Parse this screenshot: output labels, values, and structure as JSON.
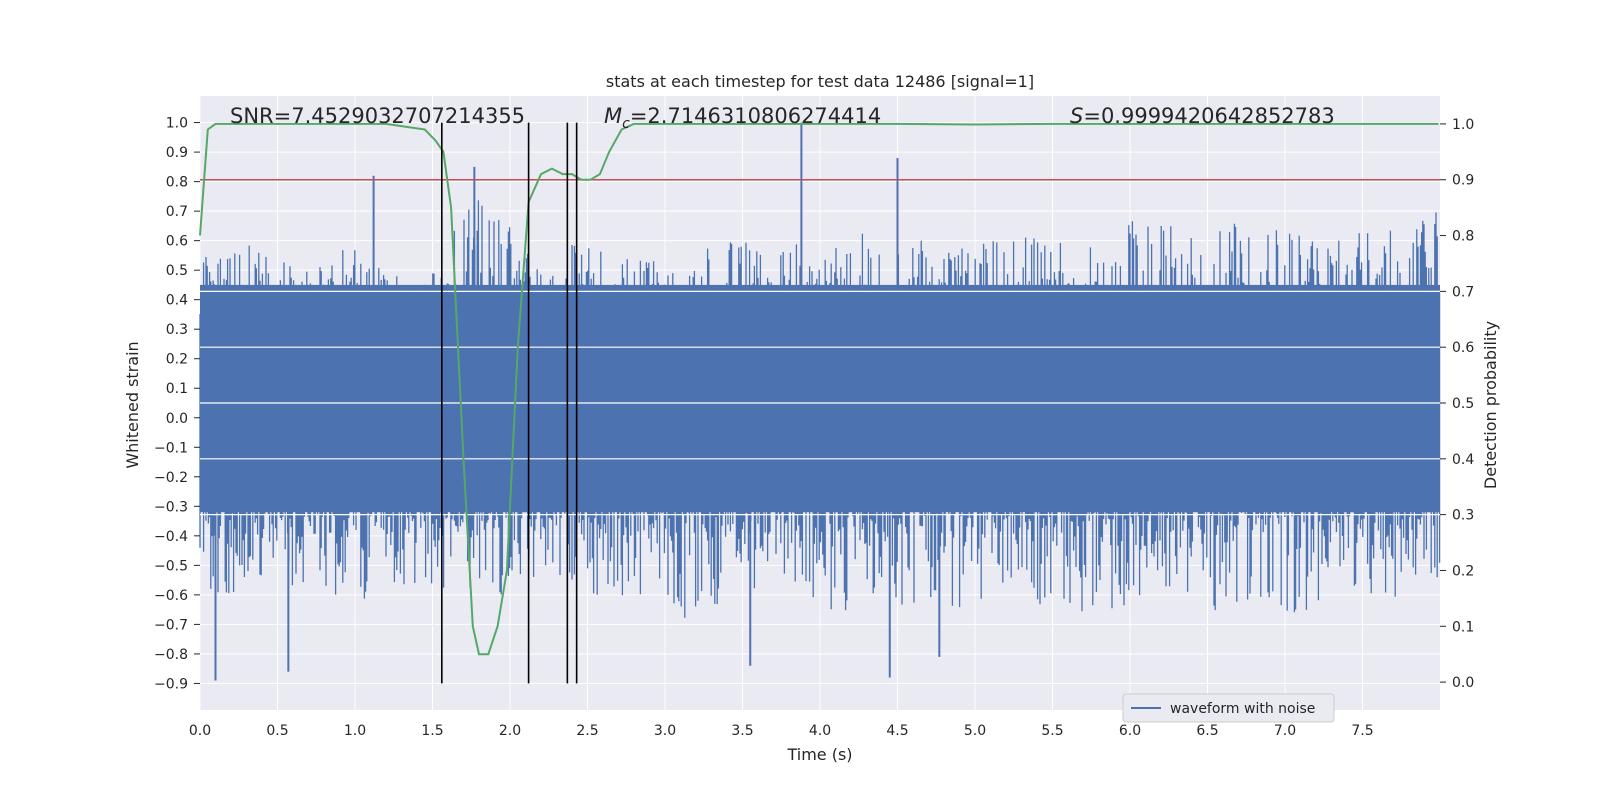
{
  "chart_data": {
    "type": "line",
    "title": "stats at each timestep for test data 12486 [signal=1]",
    "xlabel": "Time (s)",
    "ylabel": "Whitened strain",
    "y2label": "Detection probability",
    "xlim": [
      0.0,
      8.0
    ],
    "ylim": [
      -0.99,
      1.09
    ],
    "y2lim": [
      -0.05,
      1.05
    ],
    "x_ticks": [
      "0.0",
      "0.5",
      "1.0",
      "1.5",
      "2.0",
      "2.5",
      "3.0",
      "3.5",
      "4.0",
      "4.5",
      "5.0",
      "5.5",
      "6.0",
      "6.5",
      "7.0",
      "7.5"
    ],
    "x_tick_values": [
      0.0,
      0.5,
      1.0,
      1.5,
      2.0,
      2.5,
      3.0,
      3.5,
      4.0,
      4.5,
      5.0,
      5.5,
      6.0,
      6.5,
      7.0,
      7.5
    ],
    "y_ticks": [
      "1.0",
      "0.9",
      "0.8",
      "0.7",
      "0.6",
      "0.5",
      "0.4",
      "0.3",
      "0.2",
      "0.1",
      "0.0",
      "−0.1",
      "−0.2",
      "−0.3",
      "−0.4",
      "−0.5",
      "−0.6",
      "−0.7",
      "−0.8",
      "−0.9"
    ],
    "y_tick_values": [
      1.0,
      0.9,
      0.8,
      0.7,
      0.6,
      0.5,
      0.4,
      0.3,
      0.2,
      0.1,
      0.0,
      -0.1,
      -0.2,
      -0.3,
      -0.4,
      -0.5,
      -0.6,
      -0.7,
      -0.8,
      -0.9
    ],
    "y2_ticks": [
      "1.0",
      "0.9",
      "0.8",
      "0.7",
      "0.6",
      "0.5",
      "0.4",
      "0.3",
      "0.2",
      "0.1",
      "0.0"
    ],
    "y2_tick_values": [
      1.0,
      0.9,
      0.8,
      0.7,
      0.6,
      0.5,
      0.4,
      0.3,
      0.2,
      0.1,
      0.0
    ],
    "grid": true,
    "legend": {
      "position": "lower-right",
      "entries": [
        "waveform with noise"
      ]
    },
    "annotations": {
      "snr": "SNR=7.4529032707214355",
      "mc": "=2.7146310806274414",
      "s": "=0.9999420642852783"
    },
    "series": [
      {
        "name": "waveform with noise",
        "axis": "left",
        "color": "#4c72b0",
        "style": "dense noisy trace",
        "envelope_top": [
          0.55,
          0.62,
          0.55,
          0.5,
          0.6,
          0.5,
          0.45,
          0.7,
          0.82,
          0.5,
          0.6,
          0.55,
          0.55,
          0.48,
          0.68,
          0.55,
          0.6,
          0.58,
          0.65,
          0.62,
          0.58,
          0.6,
          0.65,
          0.6,
          0.6,
          0.7,
          0.66,
          0.64,
          0.68,
          0.66,
          0.62,
          0.68,
          0.7,
          0.7
        ],
        "envelope_bottom": [
          -0.6,
          -0.65,
          -0.55,
          -0.6,
          -0.62,
          -0.65,
          -0.58,
          -0.6,
          -0.62,
          -0.55,
          -0.58,
          -0.65,
          -0.6,
          -0.7,
          -0.65,
          -0.6,
          -0.62,
          -0.68,
          -0.6,
          -0.65,
          -0.66,
          -0.62,
          -0.6,
          -0.7,
          -0.65,
          -0.65,
          -0.6,
          -0.66,
          -0.62,
          -0.68,
          -0.62,
          -0.66,
          -0.6,
          -0.6
        ],
        "peaks": [
          {
            "x": 0.1,
            "y": -0.89
          },
          {
            "x": 0.57,
            "y": -0.86
          },
          {
            "x": 1.12,
            "y": 0.82
          },
          {
            "x": 1.77,
            "y": 0.85
          },
          {
            "x": 3.88,
            "y": 1.0
          },
          {
            "x": 4.45,
            "y": -0.88
          },
          {
            "x": 4.5,
            "y": 0.88
          },
          {
            "x": 4.77,
            "y": -0.81
          },
          {
            "x": 3.55,
            "y": -0.84
          }
        ]
      },
      {
        "name": "detection probability",
        "axis": "right",
        "color": "#55a868",
        "x": [
          0.0,
          0.05,
          0.1,
          0.2,
          0.4,
          0.6,
          0.8,
          1.0,
          1.2,
          1.45,
          1.52,
          1.57,
          1.62,
          1.7,
          1.76,
          1.8,
          1.86,
          1.92,
          1.98,
          2.05,
          2.12,
          2.2,
          2.27,
          2.34,
          2.4,
          2.46,
          2.52,
          2.58,
          2.64,
          2.72,
          2.8,
          3.0,
          3.5,
          4.0,
          4.5,
          5.0,
          5.5,
          6.0,
          6.5,
          7.0,
          7.5,
          7.99
        ],
        "y": [
          0.8,
          0.99,
          1.0,
          1.0,
          1.0,
          1.0,
          1.0,
          1.0,
          1.0,
          0.99,
          0.97,
          0.95,
          0.85,
          0.4,
          0.1,
          0.05,
          0.05,
          0.1,
          0.2,
          0.6,
          0.86,
          0.91,
          0.92,
          0.91,
          0.91,
          0.9,
          0.9,
          0.91,
          0.95,
          0.99,
          1.0,
          1.0,
          1.0,
          1.0,
          1.0,
          0.999,
          1.0,
          1.0,
          1.0,
          1.0,
          1.0,
          1.0
        ]
      },
      {
        "name": "threshold",
        "axis": "right",
        "color": "#c44e52",
        "y_const": 0.9
      }
    ],
    "vlines": [
      1.56,
      2.12,
      2.37,
      2.43
    ]
  }
}
